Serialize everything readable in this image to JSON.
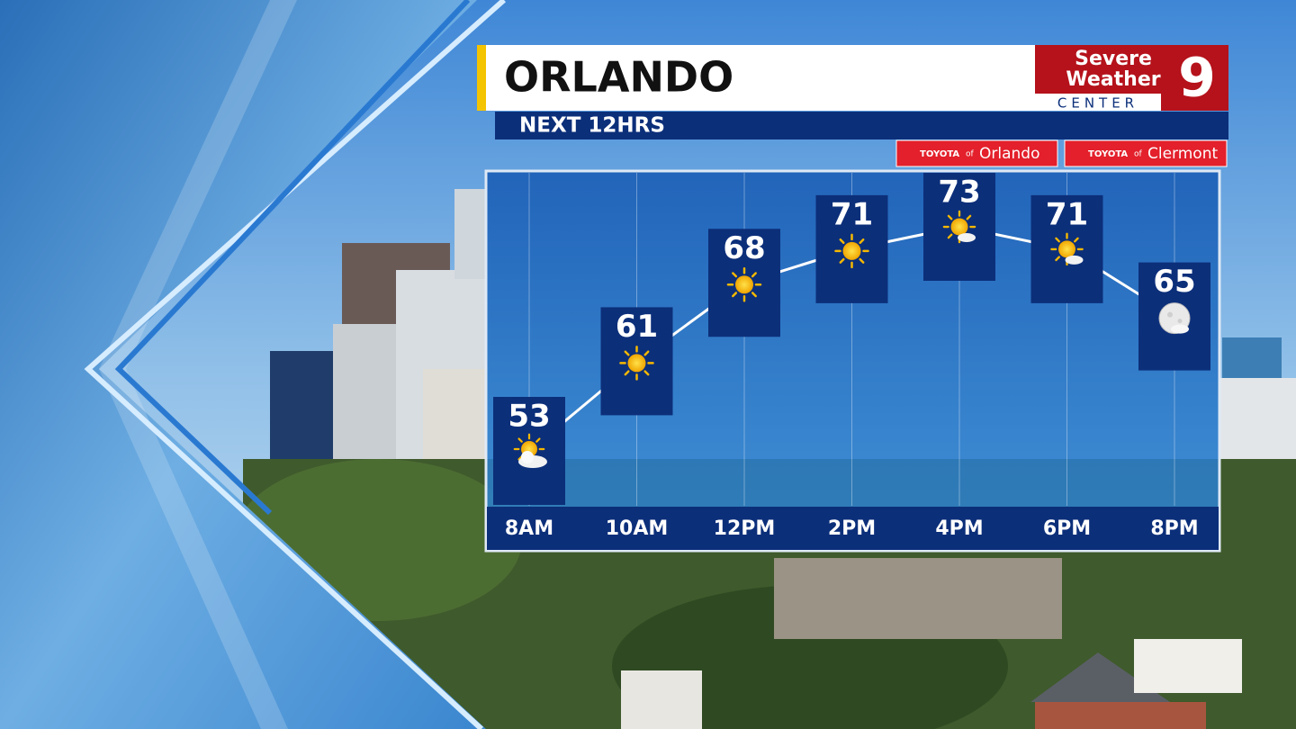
{
  "chart_data": {
    "type": "line",
    "title": "ORLANDO",
    "subtitle": "NEXT 12HRS",
    "categories": [
      "8AM",
      "10AM",
      "12PM",
      "2PM",
      "4PM",
      "6PM",
      "8PM"
    ],
    "values": [
      53,
      61,
      68,
      71,
      73,
      71,
      65
    ],
    "color": "#ffffff",
    "box_color": "#0c2f7a",
    "grid": true
  },
  "branding": {
    "logo": {
      "line1": "Severe",
      "line2": "Weather",
      "line3": "CENTER",
      "channel": "9"
    },
    "sponsors": [
      {
        "brand": "TOYOTA",
        "of": "of",
        "name": "Orlando"
      },
      {
        "brand": "TOYOTA",
        "of": "of",
        "name": "Clermont"
      }
    ]
  }
}
